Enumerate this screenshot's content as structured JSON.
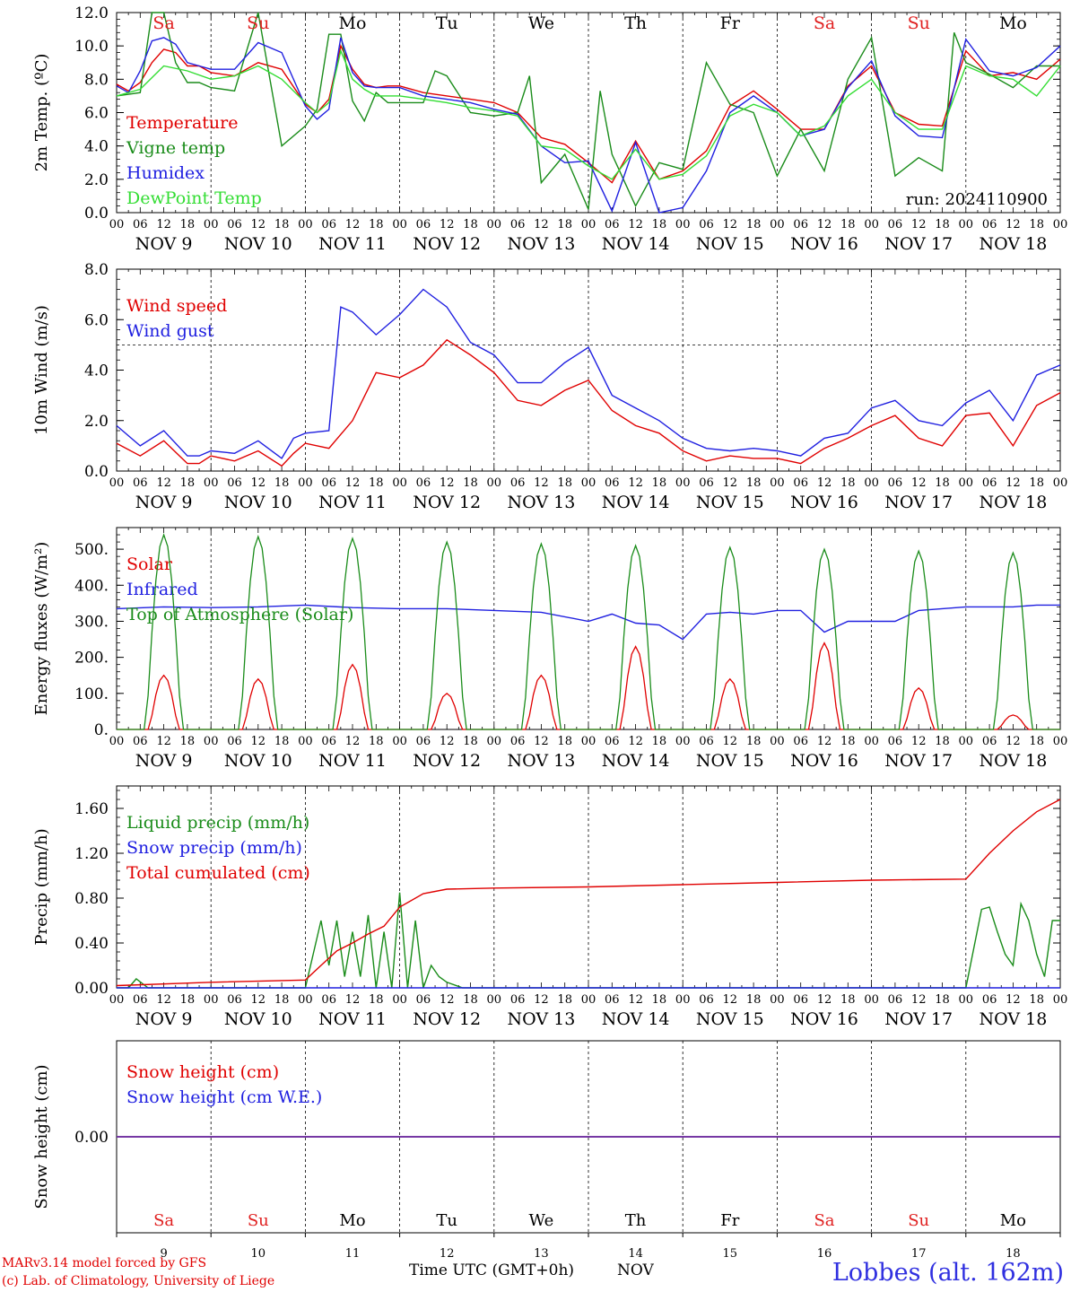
{
  "station": "Lobbes (alt. 162m)",
  "credits": [
    "MARv3.14 model forced by GFS",
    "(c) Lab. of Climatology, University of Liege"
  ],
  "run_label": "run: 2024110900",
  "time_axis_label": "Time UTC (GMT+0h)",
  "month_label": "NOV",
  "colors": {
    "red": "#e00000",
    "green": "#1a8c1a",
    "blue": "#2020e0",
    "lightgreen": "#33dd33",
    "purple": "#7030a0",
    "weekend": "#e02020"
  },
  "days": [
    {
      "dow": "Sa",
      "date": "NOV  9",
      "num": "9",
      "weekend": true
    },
    {
      "dow": "Su",
      "date": "NOV 10",
      "num": "10",
      "weekend": true
    },
    {
      "dow": "Mo",
      "date": "NOV 11",
      "num": "11",
      "weekend": false
    },
    {
      "dow": "Tu",
      "date": "NOV 12",
      "num": "12",
      "weekend": false
    },
    {
      "dow": "We",
      "date": "NOV 13",
      "num": "13",
      "weekend": false
    },
    {
      "dow": "Th",
      "date": "NOV 14",
      "num": "14",
      "weekend": false
    },
    {
      "dow": "Fr",
      "date": "NOV 15",
      "num": "15",
      "weekend": false
    },
    {
      "dow": "Sa",
      "date": "NOV 16",
      "num": "16",
      "weekend": true
    },
    {
      "dow": "Su",
      "date": "NOV 17",
      "num": "17",
      "weekend": true
    },
    {
      "dow": "Mo",
      "date": "NOV 18",
      "num": "18",
      "weekend": false
    }
  ],
  "hour_ticks": [
    "00",
    "06",
    "12",
    "18"
  ],
  "chart_data": [
    {
      "type": "line",
      "ylabel": "2m Temp. (ºC)",
      "ylim": [
        0,
        12
      ],
      "yticks": [
        "0.0",
        "2.0",
        "4.0",
        "6.0",
        "8.0",
        "10.0",
        "12.0"
      ],
      "x_unit": "hours since NOV 9 00 UTC",
      "series": [
        {
          "name": "Temperature",
          "color": "red",
          "x": [
            0,
            3,
            6,
            9,
            12,
            15,
            18,
            21,
            24,
            30,
            36,
            42,
            48,
            51,
            54,
            57,
            60,
            63,
            66,
            69,
            72,
            78,
            84,
            90,
            96,
            102,
            108,
            114,
            120,
            126,
            132,
            138,
            144,
            150,
            156,
            162,
            168,
            174,
            180,
            186,
            192,
            198,
            204,
            210,
            216,
            222,
            228,
            234,
            240
          ],
          "y": [
            7.7,
            7.3,
            7.8,
            9.0,
            9.8,
            9.6,
            8.8,
            8.8,
            8.4,
            8.2,
            9.0,
            8.6,
            6.5,
            6.0,
            6.8,
            10.0,
            8.6,
            7.7,
            7.5,
            7.6,
            7.6,
            7.2,
            7.0,
            6.8,
            6.6,
            6.0,
            4.5,
            4.1,
            3.0,
            1.8,
            4.3,
            2.0,
            2.5,
            3.7,
            6.4,
            7.3,
            6.2,
            5.0,
            5.0,
            7.6,
            8.8,
            6.0,
            5.3,
            5.2,
            9.7,
            8.2,
            8.4,
            8.0,
            9.2
          ]
        },
        {
          "name": "Vigne temp",
          "color": "green",
          "x": [
            0,
            6,
            9,
            12,
            15,
            18,
            21,
            24,
            30,
            36,
            42,
            48,
            51,
            54,
            57,
            60,
            63,
            66,
            69,
            72,
            78,
            81,
            84,
            90,
            96,
            102,
            105,
            108,
            114,
            120,
            123,
            126,
            132,
            138,
            144,
            150,
            156,
            162,
            168,
            174,
            180,
            186,
            192,
            198,
            204,
            210,
            213,
            216,
            222,
            228,
            234,
            240
          ],
          "y": [
            7.0,
            7.2,
            12.0,
            12.0,
            9.0,
            7.8,
            7.8,
            7.5,
            7.3,
            12.0,
            4.0,
            5.2,
            6.2,
            10.7,
            10.7,
            6.7,
            5.5,
            7.2,
            6.6,
            6.6,
            6.6,
            8.5,
            8.2,
            6.0,
            5.8,
            6.0,
            8.2,
            1.8,
            3.5,
            0.2,
            7.3,
            3.5,
            0.4,
            3.0,
            2.6,
            9.0,
            6.5,
            6.0,
            2.2,
            5.0,
            2.5,
            8.0,
            10.5,
            2.2,
            3.3,
            2.5,
            10.8,
            9.0,
            8.3,
            7.5,
            8.8,
            8.8
          ]
        },
        {
          "name": "Humidex",
          "color": "blue",
          "x": [
            0,
            3,
            6,
            9,
            12,
            15,
            18,
            21,
            24,
            30,
            36,
            42,
            48,
            51,
            54,
            57,
            60,
            63,
            66,
            69,
            72,
            78,
            84,
            90,
            96,
            102,
            108,
            114,
            120,
            126,
            132,
            138,
            144,
            150,
            156,
            162,
            168,
            174,
            180,
            186,
            192,
            198,
            204,
            210,
            216,
            222,
            228,
            234,
            240
          ],
          "y": [
            7.6,
            7.2,
            8.5,
            10.3,
            10.5,
            10.1,
            9.0,
            8.8,
            8.6,
            8.6,
            10.2,
            9.6,
            6.4,
            5.6,
            6.2,
            10.5,
            8.4,
            7.6,
            7.5,
            7.5,
            7.5,
            7.0,
            6.8,
            6.6,
            6.2,
            5.9,
            4.0,
            3.0,
            3.1,
            0.1,
            4.2,
            0.0,
            0.3,
            2.5,
            6.0,
            7.0,
            6.0,
            4.6,
            5.0,
            7.5,
            9.1,
            5.8,
            4.6,
            4.5,
            10.4,
            8.5,
            8.2,
            8.7,
            10.0
          ]
        },
        {
          "name": "DewPoint Temp",
          "color": "lightgreen",
          "x": [
            0,
            6,
            12,
            18,
            24,
            30,
            36,
            42,
            48,
            51,
            54,
            57,
            60,
            63,
            66,
            69,
            72,
            78,
            84,
            90,
            96,
            102,
            108,
            114,
            120,
            126,
            132,
            138,
            144,
            150,
            156,
            162,
            168,
            174,
            180,
            186,
            192,
            198,
            204,
            210,
            216,
            222,
            228,
            234,
            240
          ],
          "y": [
            7.0,
            7.4,
            8.8,
            8.5,
            8.0,
            8.2,
            8.8,
            8.0,
            6.6,
            6.0,
            6.6,
            9.7,
            8.0,
            7.4,
            7.0,
            7.0,
            7.0,
            6.8,
            6.6,
            6.3,
            6.1,
            5.8,
            4.0,
            3.8,
            2.8,
            2.0,
            3.8,
            2.0,
            2.3,
            3.4,
            5.8,
            6.5,
            6.0,
            4.6,
            5.2,
            7.0,
            8.0,
            6.0,
            5.0,
            5.0,
            8.8,
            8.2,
            8.0,
            7.0,
            8.8
          ]
        }
      ]
    },
    {
      "type": "line",
      "ylabel": "10m Wind (m/s)",
      "ylim": [
        0,
        8
      ],
      "yticks": [
        "0.0",
        "2.0",
        "4.0",
        "6.0",
        "8.0"
      ],
      "reference_line": 5.0,
      "x_unit": "hours since NOV 9 00 UTC",
      "series": [
        {
          "name": "Wind speed",
          "color": "red",
          "x": [
            0,
            6,
            12,
            18,
            21,
            24,
            30,
            36,
            42,
            45,
            48,
            54,
            60,
            66,
            72,
            78,
            84,
            90,
            96,
            102,
            108,
            114,
            120,
            126,
            132,
            138,
            144,
            150,
            156,
            162,
            168,
            174,
            180,
            186,
            192,
            198,
            204,
            210,
            216,
            222,
            228,
            234,
            240
          ],
          "y": [
            1.1,
            0.6,
            1.2,
            0.3,
            0.3,
            0.6,
            0.4,
            0.8,
            0.2,
            0.7,
            1.1,
            0.9,
            2.0,
            3.9,
            3.7,
            4.2,
            5.2,
            4.6,
            3.9,
            2.8,
            2.6,
            3.2,
            3.6,
            2.4,
            1.8,
            1.5,
            0.8,
            0.4,
            0.6,
            0.5,
            0.5,
            0.3,
            0.9,
            1.3,
            1.8,
            2.2,
            1.3,
            1.0,
            2.2,
            2.3,
            1.0,
            2.6,
            3.1
          ]
        },
        {
          "name": "Wind gust",
          "color": "blue",
          "x": [
            0,
            6,
            12,
            18,
            21,
            24,
            30,
            36,
            42,
            45,
            48,
            54,
            57,
            60,
            66,
            72,
            78,
            84,
            90,
            96,
            102,
            108,
            114,
            120,
            126,
            132,
            138,
            144,
            150,
            156,
            162,
            168,
            174,
            180,
            186,
            192,
            198,
            204,
            210,
            216,
            222,
            228,
            234,
            240
          ],
          "y": [
            1.8,
            1.0,
            1.6,
            0.6,
            0.6,
            0.8,
            0.7,
            1.2,
            0.5,
            1.3,
            1.5,
            1.6,
            6.5,
            6.3,
            5.4,
            6.2,
            7.2,
            6.5,
            5.1,
            4.6,
            3.5,
            3.5,
            4.3,
            4.9,
            3.0,
            2.5,
            2.0,
            1.3,
            0.9,
            0.8,
            0.9,
            0.8,
            0.6,
            1.3,
            1.5,
            2.5,
            2.8,
            2.0,
            1.8,
            2.7,
            3.2,
            2.0,
            3.8,
            4.2
          ]
        }
      ]
    },
    {
      "type": "line",
      "ylabel": "Energy fluxes (W/m²)",
      "ylim": [
        0,
        560
      ],
      "yticks": [
        "0.",
        "100.",
        "200.",
        "300.",
        "400.",
        "500."
      ],
      "x_unit": "hours since NOV 9 00 UTC",
      "series": [
        {
          "name": "Solar",
          "color": "red",
          "peaks": [
            150,
            140,
            180,
            100,
            150,
            230,
            140,
            240,
            115,
            40
          ]
        },
        {
          "name": "Infrared",
          "color": "blue",
          "x": [
            0,
            12,
            24,
            36,
            48,
            60,
            72,
            84,
            96,
            108,
            120,
            126,
            132,
            138,
            144,
            150,
            156,
            162,
            168,
            174,
            180,
            186,
            192,
            198,
            204,
            210,
            216,
            222,
            228,
            234,
            240
          ],
          "y": [
            335,
            340,
            338,
            340,
            345,
            338,
            335,
            335,
            330,
            325,
            300,
            320,
            295,
            290,
            250,
            320,
            325,
            320,
            330,
            330,
            270,
            300,
            300,
            300,
            330,
            335,
            340,
            340,
            340,
            345,
            345
          ]
        },
        {
          "name": "Top of Atmosphere (Solar)",
          "color": "green",
          "peaks": [
            540,
            535,
            530,
            520,
            515,
            510,
            505,
            500,
            495,
            490
          ]
        }
      ]
    },
    {
      "type": "line",
      "ylabel": "Precip (mm/h)",
      "ylim": [
        0,
        1.8
      ],
      "yticks": [
        "0.00",
        "0.40",
        "0.80",
        "1.20",
        "1.60"
      ],
      "x_unit": "hours since NOV 9 00 UTC",
      "series": [
        {
          "name": "Liquid precip (mm/h)",
          "color": "green",
          "x": [
            0,
            3,
            5,
            8,
            48,
            52,
            54,
            56,
            58,
            60,
            62,
            64,
            66,
            68,
            70,
            72,
            74,
            76,
            78,
            80,
            82,
            84,
            88,
            150,
            216,
            220,
            222,
            224,
            226,
            228,
            230,
            232,
            234,
            236,
            238,
            240
          ],
          "y": [
            0,
            0,
            0.08,
            0,
            0,
            0.6,
            0.2,
            0.6,
            0.1,
            0.5,
            0.1,
            0.65,
            0,
            0.5,
            0,
            0.85,
            0,
            0.6,
            0,
            0.2,
            0.1,
            0.05,
            0,
            0,
            0,
            0.7,
            0.72,
            0.5,
            0.3,
            0.2,
            0.75,
            0.6,
            0.3,
            0.1,
            0.6,
            0.6
          ]
        },
        {
          "name": "Snow precip (mm/h)",
          "color": "blue",
          "x": [
            0,
            240
          ],
          "y": [
            0,
            0
          ]
        },
        {
          "name": "Total cumulated (cm)",
          "color": "red",
          "x": [
            0,
            24,
            48,
            52,
            56,
            60,
            64,
            68,
            72,
            78,
            84,
            96,
            120,
            144,
            168,
            192,
            216,
            222,
            228,
            234,
            240
          ],
          "y": [
            0.02,
            0.05,
            0.07,
            0.2,
            0.33,
            0.4,
            0.48,
            0.55,
            0.72,
            0.84,
            0.88,
            0.89,
            0.9,
            0.92,
            0.94,
            0.96,
            0.97,
            1.2,
            1.4,
            1.57,
            1.68
          ]
        }
      ]
    },
    {
      "type": "line",
      "ylabel": "Snow height (cm)",
      "ylim": [
        -1,
        1
      ],
      "yticks": [
        "0.00"
      ],
      "x_unit": "hours since NOV 9 00 UTC",
      "series": [
        {
          "name": "Snow height (cm)",
          "color": "red",
          "x": [
            0,
            240
          ],
          "y": [
            0,
            0
          ]
        },
        {
          "name": "Snow height (cm W.E.)",
          "color": "blue",
          "x": [
            0,
            240
          ],
          "y": [
            0,
            0
          ]
        }
      ]
    }
  ]
}
